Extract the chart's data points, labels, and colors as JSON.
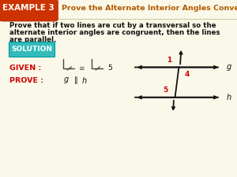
{
  "bg_color": "#faf8e8",
  "header_bg": "#cc3300",
  "header_text_color": "#ffffff",
  "header_label": "EXAMPLE 3",
  "header_title": "Prove the Alternate Interior Angles Converse",
  "header_title_color": "#b35a00",
  "body_text1": "Prove that if two lines are cut by a transversal so the",
  "body_text2": "alternate interior angles are congruent, then the lines",
  "body_text3": "are parallel.",
  "solution_bg": "#33bbbb",
  "solution_text": "SOLUTION",
  "given_label": "GIVEN :",
  "given_color": "#cc0000",
  "prove_label": "PROVE :",
  "prove_color": "#cc0000",
  "diagram_line_color": "#111111",
  "diagram_angle_color": "#cc0000",
  "g_label": "g",
  "h_label": "h",
  "label1": "1",
  "label4": "4",
  "label5": "5"
}
